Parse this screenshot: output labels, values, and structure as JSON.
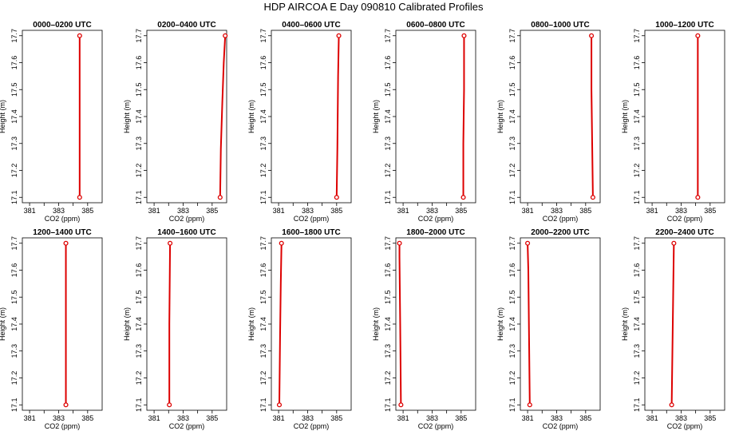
{
  "figure": {
    "title": "HDP AIRCOA E  Day 090810  Calibrated Profiles",
    "xlabel": "CO2 (ppm)",
    "ylabel": "Height (m)",
    "colors": {
      "line": "#dd0000",
      "points": "#dd0000",
      "axes": "#000000"
    }
  },
  "chart_data": [
    {
      "type": "line",
      "title": "0000–0200 UTC",
      "xlim": [
        380.5,
        386.0
      ],
      "ylim": [
        17.08,
        17.72
      ],
      "xticks": [
        "381",
        "383",
        "385"
      ],
      "yticks": [
        "17.1",
        "17.2",
        "17.3",
        "17.4",
        "17.5",
        "17.6",
        "17.7"
      ],
      "series": [
        {
          "x": [
            384.45,
            384.45
          ],
          "y": [
            17.1,
            17.7
          ]
        }
      ]
    },
    {
      "type": "line",
      "title": "0200–0400 UTC",
      "xlim": [
        380.5,
        386.0
      ],
      "ylim": [
        17.08,
        17.72
      ],
      "xticks": [
        "381",
        "383",
        "385"
      ],
      "yticks": [
        "17.1",
        "17.2",
        "17.3",
        "17.4",
        "17.5",
        "17.6",
        "17.7"
      ],
      "series": [
        {
          "x": [
            385.55,
            385.6,
            385.7,
            385.8,
            385.9
          ],
          "y": [
            17.1,
            17.28,
            17.45,
            17.6,
            17.7
          ]
        }
      ]
    },
    {
      "type": "line",
      "title": "0400–0600 UTC",
      "xlim": [
        380.5,
        386.0
      ],
      "ylim": [
        17.08,
        17.72
      ],
      "xticks": [
        "381",
        "383",
        "385"
      ],
      "yticks": [
        "17.1",
        "17.2",
        "17.3",
        "17.4",
        "17.5",
        "17.6",
        "17.7"
      ],
      "series": [
        {
          "x": [
            385.0,
            385.05,
            385.1,
            385.15
          ],
          "y": [
            17.1,
            17.28,
            17.55,
            17.7
          ]
        }
      ]
    },
    {
      "type": "line",
      "title": "0600–0800 UTC",
      "xlim": [
        380.5,
        386.0
      ],
      "ylim": [
        17.08,
        17.72
      ],
      "xticks": [
        "381",
        "383",
        "385"
      ],
      "yticks": [
        "17.1",
        "17.2",
        "17.3",
        "17.4",
        "17.5",
        "17.6",
        "17.7"
      ],
      "series": [
        {
          "x": [
            385.15,
            385.15,
            385.2,
            385.2
          ],
          "y": [
            17.1,
            17.3,
            17.5,
            17.7
          ]
        }
      ]
    },
    {
      "type": "line",
      "title": "0800–1000 UTC",
      "xlim": [
        380.5,
        386.0
      ],
      "ylim": [
        17.08,
        17.72
      ],
      "xticks": [
        "381",
        "383",
        "385"
      ],
      "yticks": [
        "17.1",
        "17.2",
        "17.3",
        "17.4",
        "17.5",
        "17.6",
        "17.7"
      ],
      "series": [
        {
          "x": [
            385.5,
            385.45,
            385.4,
            385.4
          ],
          "y": [
            17.1,
            17.3,
            17.5,
            17.7
          ]
        }
      ]
    },
    {
      "type": "line",
      "title": "1000–1200 UTC",
      "xlim": [
        380.5,
        386.0
      ],
      "ylim": [
        17.08,
        17.72
      ],
      "xticks": [
        "381",
        "383",
        "385"
      ],
      "yticks": [
        "17.1",
        "17.2",
        "17.3",
        "17.4",
        "17.5",
        "17.6",
        "17.7"
      ],
      "series": [
        {
          "x": [
            384.15,
            384.15
          ],
          "y": [
            17.1,
            17.7
          ]
        }
      ]
    },
    {
      "type": "line",
      "title": "1200–1400 UTC",
      "xlim": [
        380.5,
        386.0
      ],
      "ylim": [
        17.08,
        17.72
      ],
      "xticks": [
        "381",
        "383",
        "385"
      ],
      "yticks": [
        "17.1",
        "17.2",
        "17.3",
        "17.4",
        "17.5",
        "17.6",
        "17.7"
      ],
      "series": [
        {
          "x": [
            383.5,
            383.5
          ],
          "y": [
            17.1,
            17.7
          ]
        }
      ]
    },
    {
      "type": "line",
      "title": "1400–1600 UTC",
      "xlim": [
        380.5,
        386.0
      ],
      "ylim": [
        17.08,
        17.72
      ],
      "xticks": [
        "381",
        "383",
        "385"
      ],
      "yticks": [
        "17.1",
        "17.2",
        "17.3",
        "17.4",
        "17.5",
        "17.6",
        "17.7"
      ],
      "series": [
        {
          "x": [
            382.05,
            382.05,
            382.1
          ],
          "y": [
            17.1,
            17.4,
            17.7
          ]
        }
      ]
    },
    {
      "type": "line",
      "title": "1600–1800 UTC",
      "xlim": [
        380.5,
        386.0
      ],
      "ylim": [
        17.08,
        17.72
      ],
      "xticks": [
        "381",
        "383",
        "385"
      ],
      "yticks": [
        "17.1",
        "17.2",
        "17.3",
        "17.4",
        "17.5",
        "17.6",
        "17.7"
      ],
      "series": [
        {
          "x": [
            381.05,
            381.1,
            381.15,
            381.2
          ],
          "y": [
            17.1,
            17.35,
            17.55,
            17.7
          ]
        }
      ]
    },
    {
      "type": "line",
      "title": "1800–2000 UTC",
      "xlim": [
        380.5,
        386.0
      ],
      "ylim": [
        17.08,
        17.72
      ],
      "xticks": [
        "381",
        "383",
        "385"
      ],
      "yticks": [
        "17.1",
        "17.2",
        "17.3",
        "17.4",
        "17.5",
        "17.6",
        "17.7"
      ],
      "series": [
        {
          "x": [
            380.85,
            380.8,
            380.75,
            380.75
          ],
          "y": [
            17.1,
            17.4,
            17.65,
            17.7
          ]
        }
      ]
    },
    {
      "type": "line",
      "title": "2000–2200 UTC",
      "xlim": [
        380.5,
        386.0
      ],
      "ylim": [
        17.08,
        17.72
      ],
      "xticks": [
        "381",
        "383",
        "385"
      ],
      "yticks": [
        "17.1",
        "17.2",
        "17.3",
        "17.4",
        "17.5",
        "17.6",
        "17.7"
      ],
      "series": [
        {
          "x": [
            381.15,
            381.1,
            381.05,
            381.0
          ],
          "y": [
            17.1,
            17.35,
            17.6,
            17.7
          ]
        }
      ]
    },
    {
      "type": "line",
      "title": "2200–2400 UTC",
      "xlim": [
        380.5,
        386.0
      ],
      "ylim": [
        17.08,
        17.72
      ],
      "xticks": [
        "381",
        "383",
        "385"
      ],
      "yticks": [
        "17.1",
        "17.2",
        "17.3",
        "17.4",
        "17.5",
        "17.6",
        "17.7"
      ],
      "series": [
        {
          "x": [
            382.35,
            382.4,
            382.45,
            382.5
          ],
          "y": [
            17.1,
            17.3,
            17.5,
            17.7
          ]
        }
      ]
    }
  ]
}
